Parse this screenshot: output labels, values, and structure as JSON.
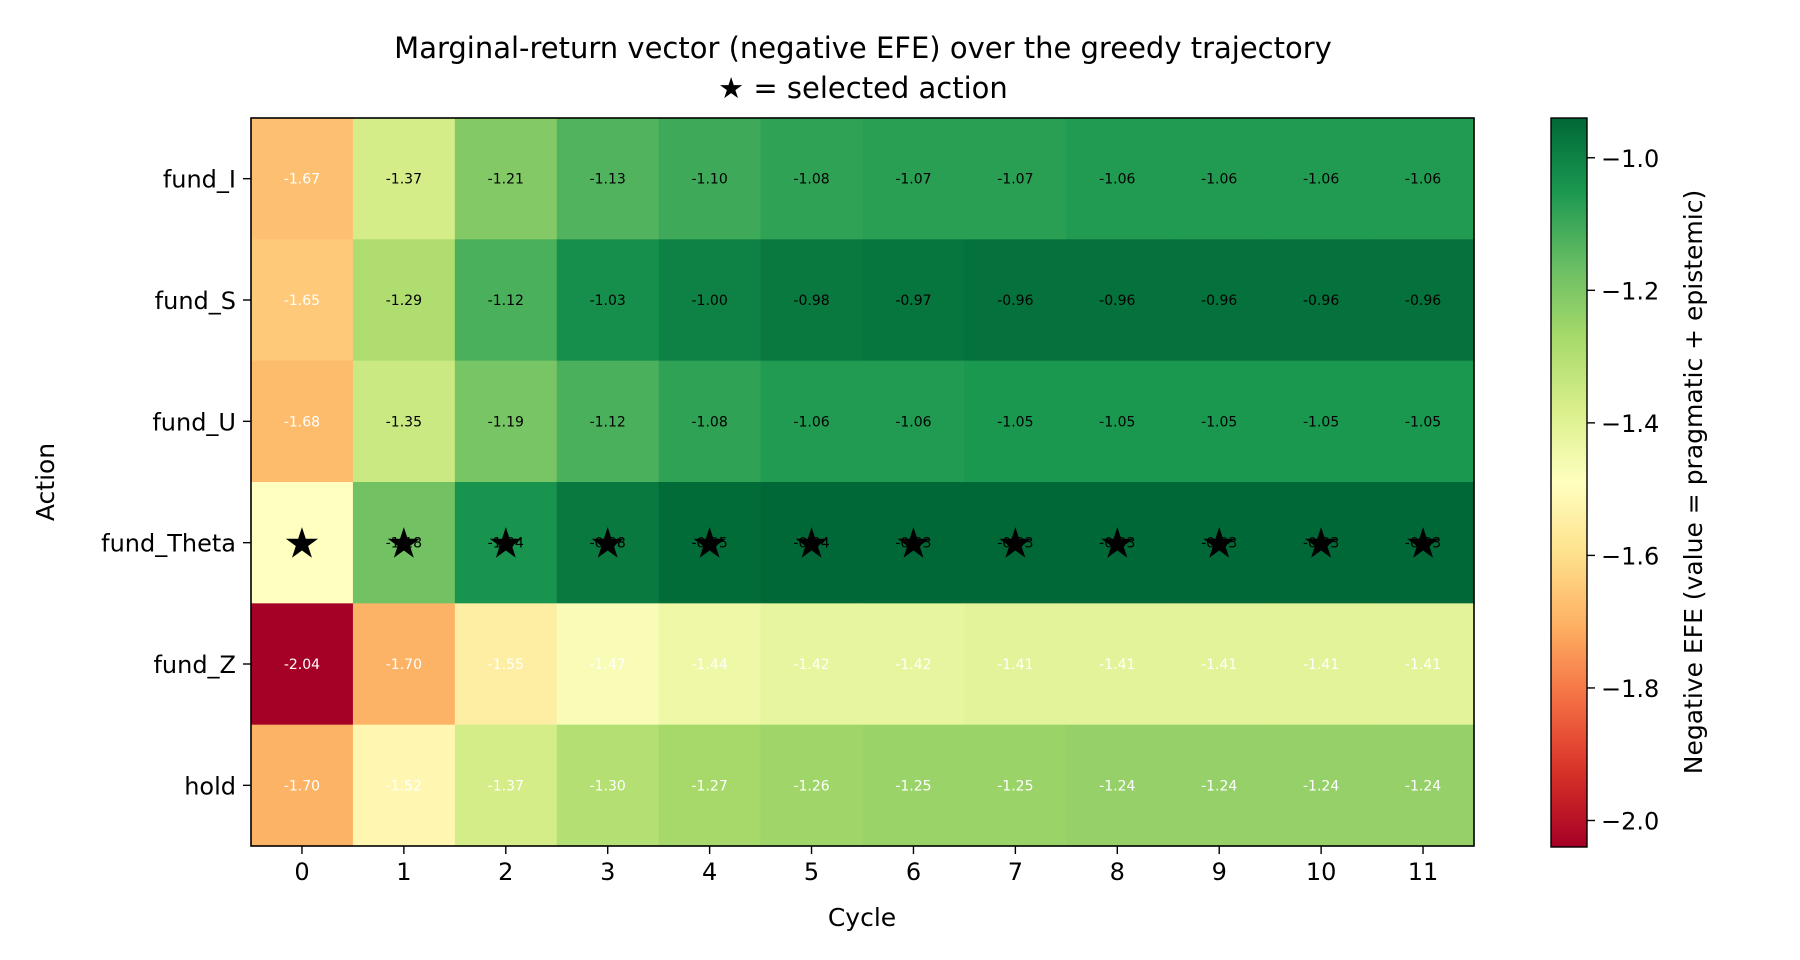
{
  "chart_data": {
    "type": "heatmap",
    "title": "Marginal-return vector (negative EFE) over the greedy trajectory",
    "subtitle": "★ = selected action",
    "xlabel": "Cycle",
    "ylabel": "Action",
    "colorbar_label": "Negative EFE (value = pragmatic + epistemic)",
    "colormap": "RdYlGn",
    "vmin": -2.04,
    "vmax": -0.94,
    "colorbar_ticks": [
      -1.0,
      -1.2,
      -1.4,
      -1.6,
      -1.8,
      -2.0
    ],
    "colorbar_tick_labels": [
      "−1.0",
      "−1.2",
      "−1.4",
      "−1.6",
      "−1.8",
      "−2.0"
    ],
    "x_categories": [
      "0",
      "1",
      "2",
      "3",
      "4",
      "5",
      "6",
      "7",
      "8",
      "9",
      "10",
      "11"
    ],
    "y_categories": [
      "fund_I",
      "fund_S",
      "fund_U",
      "fund_Theta",
      "fund_Z",
      "hold"
    ],
    "values": [
      [
        -1.67,
        -1.37,
        -1.21,
        -1.13,
        -1.1,
        -1.08,
        -1.07,
        -1.07,
        -1.06,
        -1.06,
        -1.06,
        -1.06
      ],
      [
        -1.65,
        -1.29,
        -1.12,
        -1.03,
        -1.0,
        -0.98,
        -0.97,
        -0.96,
        -0.96,
        -0.96,
        -0.96,
        -0.96
      ],
      [
        -1.68,
        -1.35,
        -1.19,
        -1.12,
        -1.08,
        -1.06,
        -1.06,
        -1.05,
        -1.05,
        -1.05,
        -1.05,
        -1.05
      ],
      [
        -1.49,
        -1.18,
        -1.04,
        -0.98,
        -0.95,
        -0.94,
        -0.93,
        -0.93,
        -0.93,
        -0.93,
        -0.93,
        -0.93
      ],
      [
        -2.04,
        -1.7,
        -1.55,
        -1.47,
        -1.44,
        -1.42,
        -1.42,
        -1.41,
        -1.41,
        -1.41,
        -1.41,
        -1.41
      ],
      [
        -1.7,
        -1.52,
        -1.37,
        -1.3,
        -1.27,
        -1.26,
        -1.25,
        -1.25,
        -1.24,
        -1.24,
        -1.24,
        -1.24
      ]
    ],
    "cell_labels": [
      [
        "-1.67",
        "-1.37",
        "-1.21",
        "-1.13",
        "-1.10",
        "-1.08",
        "-1.07",
        "-1.07",
        "-1.06",
        "-1.06",
        "-1.06",
        "-1.06"
      ],
      [
        "-1.65",
        "-1.29",
        "-1.12",
        "-1.03",
        "-1.00",
        "-0.98",
        "-0.97",
        "-0.96",
        "-0.96",
        "-0.96",
        "-0.96",
        "-0.96"
      ],
      [
        "-1.68",
        "-1.35",
        "-1.19",
        "-1.12",
        "-1.08",
        "-1.06",
        "-1.06",
        "-1.05",
        "-1.05",
        "-1.05",
        "-1.05",
        "-1.05"
      ],
      [
        "",
        "-1.18",
        "-1.04",
        "-0.98",
        "-0.95",
        "-0.94",
        "-0.93",
        "-0.93",
        "-0.93",
        "-0.93",
        "-0.93",
        "-0.93"
      ],
      [
        "-2.04",
        "-1.70",
        "-1.55",
        "-1.47",
        "-1.44",
        "-1.42",
        "-1.42",
        "-1.41",
        "-1.41",
        "-1.41",
        "-1.41",
        "-1.41"
      ],
      [
        "-1.70",
        "-1.52",
        "-1.37",
        "-1.30",
        "-1.27",
        "-1.26",
        "-1.25",
        "-1.25",
        "-1.24",
        "-1.24",
        "-1.24",
        "-1.24"
      ]
    ],
    "selected_action_row": "fund_Theta",
    "selected_marker": "★",
    "selected_cycles": [
      0,
      1,
      2,
      3,
      4,
      5,
      6,
      7,
      8,
      9,
      10,
      11
    ]
  }
}
